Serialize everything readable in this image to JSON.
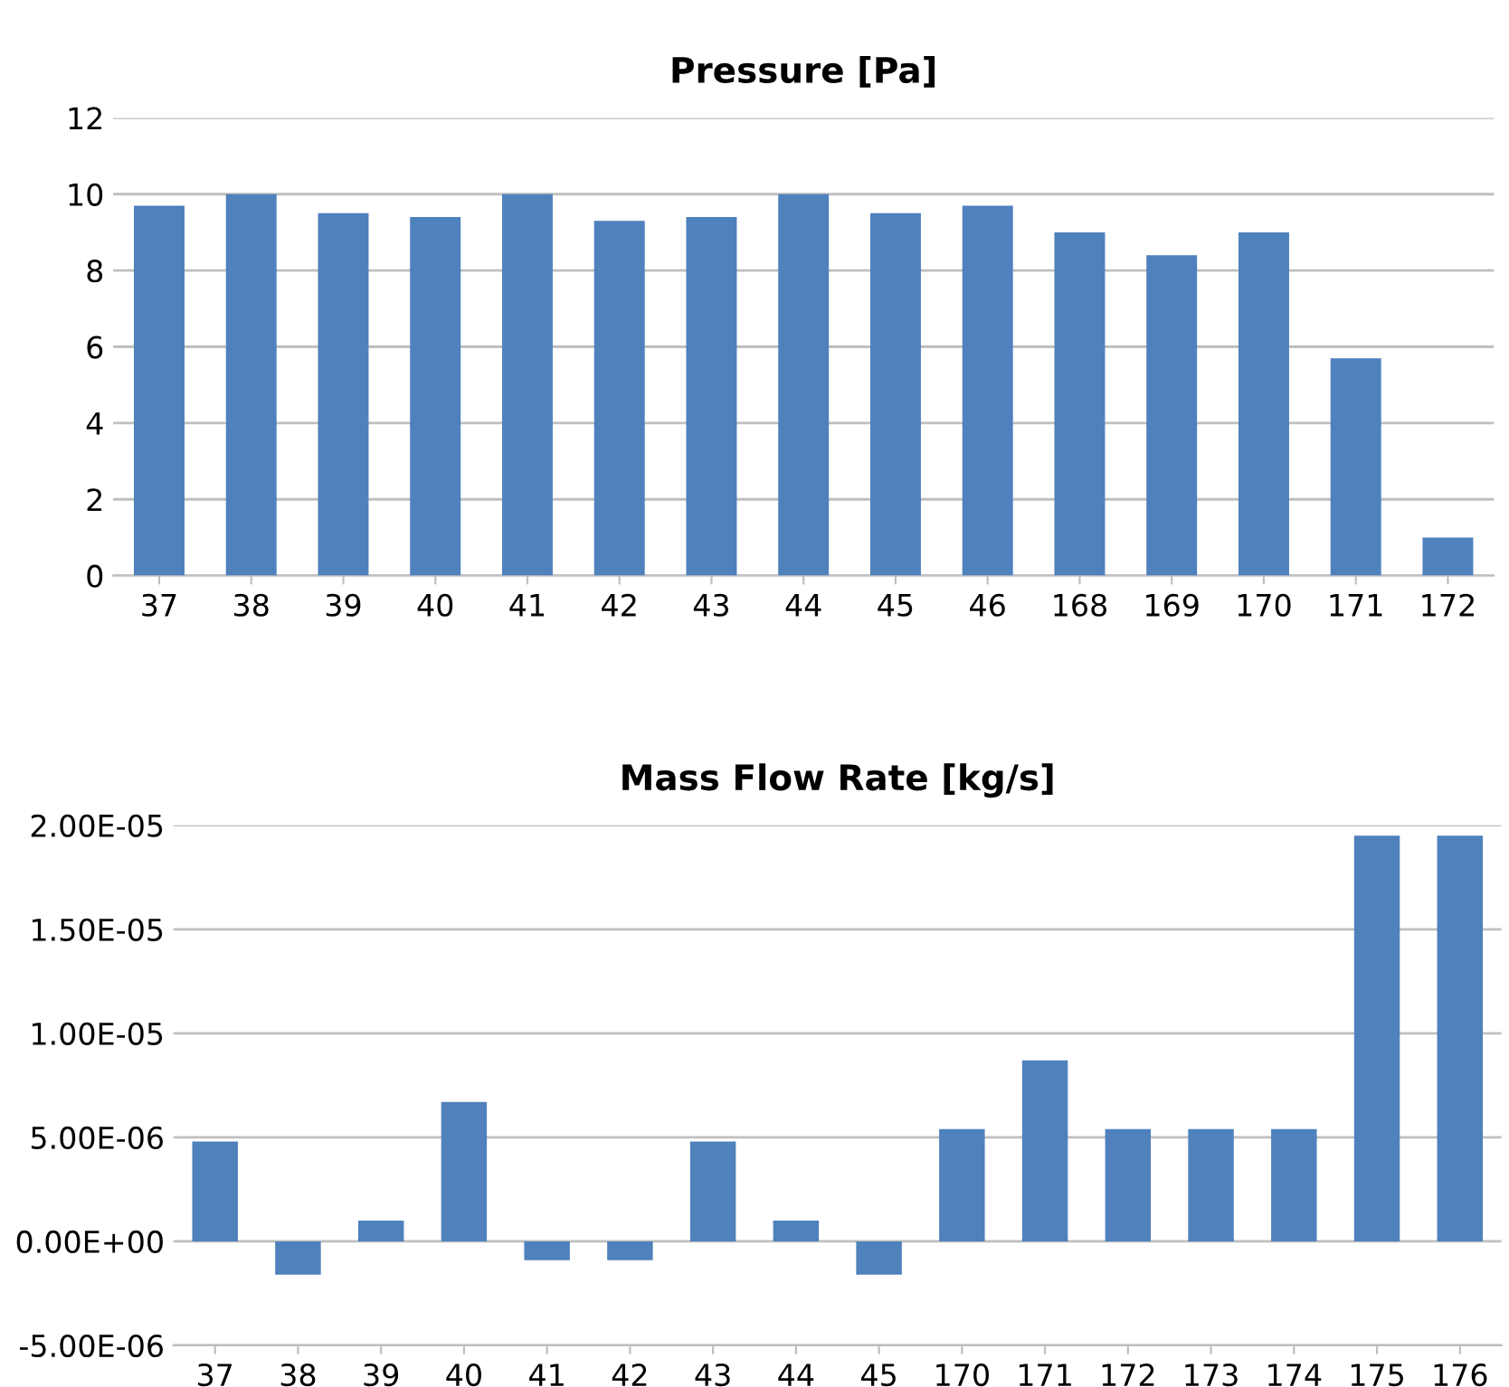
{
  "chart_data": [
    {
      "type": "bar",
      "title": "Pressure [Pa]",
      "categories": [
        "37",
        "38",
        "39",
        "40",
        "41",
        "42",
        "43",
        "44",
        "45",
        "46",
        "168",
        "169",
        "170",
        "171",
        "172"
      ],
      "values": [
        9.7,
        10.0,
        9.5,
        9.4,
        10.0,
        9.3,
        9.4,
        10.0,
        9.5,
        9.7,
        9.0,
        8.4,
        9.0,
        5.7,
        1.0
      ],
      "color": "#4f81bd",
      "ylim": [
        0,
        12
      ],
      "yticks": [
        0,
        2,
        4,
        6,
        8,
        10,
        12
      ],
      "grid": "y"
    },
    {
      "type": "bar",
      "title": "Mass Flow Rate [kg/s]",
      "categories": [
        "37",
        "38",
        "39",
        "40",
        "41",
        "42",
        "43",
        "44",
        "45",
        "170",
        "171",
        "172",
        "173",
        "174",
        "175",
        "176"
      ],
      "values": [
        4.8e-06,
        -1.6e-06,
        1e-06,
        6.7e-06,
        -9e-07,
        -9e-07,
        4.8e-06,
        1e-06,
        -1.6e-06,
        5.4e-06,
        8.7e-06,
        5.4e-06,
        5.4e-06,
        5.4e-06,
        1.95e-05,
        1.95e-05
      ],
      "color": "#4f81bd",
      "ylim": [
        -5e-06,
        2e-05
      ],
      "yticks": [
        {
          "value": -5e-06,
          "label": "-5.00E-06"
        },
        {
          "value": 0,
          "label": "0.00E+00"
        },
        {
          "value": 5e-06,
          "label": "5.00E-06"
        },
        {
          "value": 1e-05,
          "label": "1.00E-05"
        },
        {
          "value": 1.5e-05,
          "label": "1.50E-05"
        },
        {
          "value": 2e-05,
          "label": "2.00E-05"
        }
      ],
      "grid": "y"
    }
  ]
}
